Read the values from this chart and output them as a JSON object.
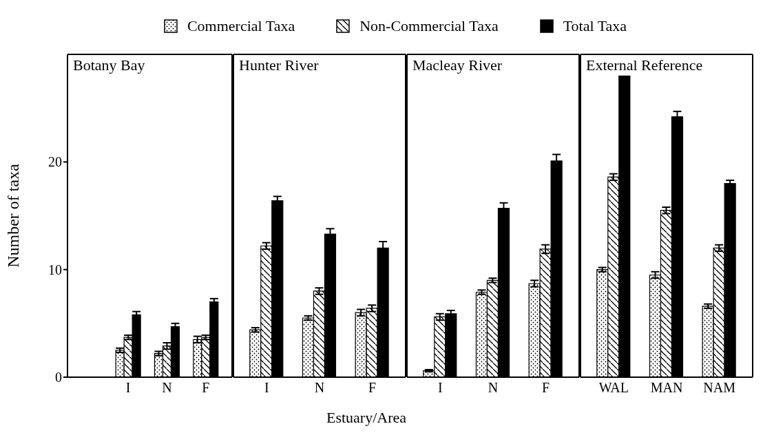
{
  "chart_data": [
    {
      "type": "bar",
      "title": "Botany Bay",
      "ylabel": "Number of taxa",
      "categories": [
        "I",
        "N",
        "F"
      ],
      "ylim": [
        0,
        30
      ],
      "yticks": [
        0,
        10,
        20
      ],
      "legend": "top",
      "tick_labels": "xy",
      "series": [
        {
          "name": "Commercial Taxa",
          "color": "#000000",
          "values": [
            2.5,
            2.2,
            3.5
          ],
          "errors": [
            0.2,
            0.2,
            0.3
          ]
        },
        {
          "name": "Non-Commercial Taxa",
          "color": "#000000",
          "values": [
            3.7,
            2.9,
            3.7
          ],
          "errors": [
            0.2,
            0.3,
            0.2
          ]
        },
        {
          "name": "Total Taxa",
          "color": "#000000",
          "values": [
            5.8,
            4.7,
            7.0
          ],
          "errors": [
            0.3,
            0.3,
            0.3
          ]
        }
      ]
    },
    {
      "type": "bar",
      "title": "Hunter River",
      "xlabel": "Estuary/Area",
      "categories": [
        "I",
        "N",
        "F"
      ],
      "ylim": [
        0,
        30
      ],
      "yticks": [
        0,
        10,
        20
      ],
      "tick_labels": "x",
      "series": [
        {
          "color": "#000000",
          "values": [
            4.4,
            5.5,
            6.0
          ],
          "errors": [
            0.2,
            0.2,
            0.3
          ]
        },
        {
          "color": "#000000",
          "values": [
            12.2,
            8.0,
            6.4
          ],
          "errors": [
            0.3,
            0.3,
            0.3
          ]
        },
        {
          "color": "#000000",
          "values": [
            16.4,
            13.3,
            12.0
          ],
          "errors": [
            0.4,
            0.5,
            0.6
          ]
        }
      ]
    },
    {
      "type": "bar",
      "title": "Macleay River",
      "categories": [
        "I",
        "N",
        "F"
      ],
      "ylim": [
        0,
        30
      ],
      "yticks": [
        0,
        10,
        20
      ],
      "tick_labels": "x",
      "series": [
        {
          "color": "#000000",
          "values": [
            0.6,
            7.9,
            8.7
          ],
          "errors": [
            0.1,
            0.2,
            0.3
          ]
        },
        {
          "color": "#000000",
          "values": [
            5.6,
            9.0,
            11.9
          ],
          "errors": [
            0.3,
            0.2,
            0.4
          ]
        },
        {
          "color": "#000000",
          "values": [
            5.9,
            15.7,
            20.1
          ],
          "errors": [
            0.3,
            0.5,
            0.6
          ]
        }
      ]
    },
    {
      "type": "bar",
      "title": "External Reference",
      "categories": [
        "WAL",
        "MAN",
        "NAM"
      ],
      "ylim": [
        0,
        30
      ],
      "yticks": [
        0,
        10,
        20
      ],
      "tick_labels": "x",
      "series": [
        {
          "color": "#000000",
          "values": [
            10.0,
            9.5,
            6.6
          ],
          "errors": [
            0.2,
            0.3,
            0.2
          ]
        },
        {
          "color": "#000000",
          "values": [
            18.6,
            15.5,
            12.0
          ],
          "errors": [
            0.3,
            0.3,
            0.3
          ]
        },
        {
          "color": "#000000",
          "values": [
            28.0,
            24.2,
            18.0
          ],
          "errors": [
            null,
            0.5,
            0.3
          ]
        }
      ]
    }
  ]
}
